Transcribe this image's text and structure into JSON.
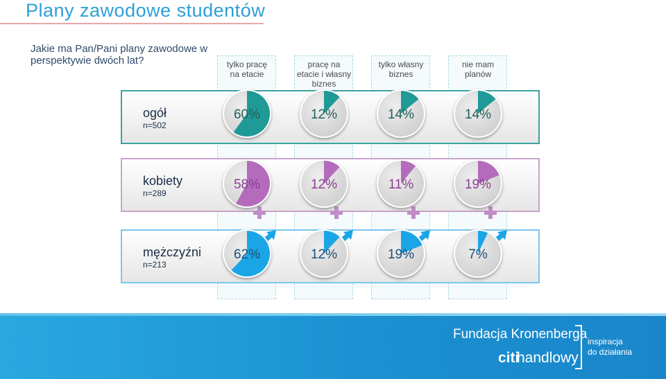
{
  "title": "Plany zawodowe studentów",
  "question": "Jakie ma Pan/Pani plany zawodowe w perspektywie dwóch lat?",
  "colors": {
    "ogol": "#1f9a96",
    "kobiety": "#b46bbc",
    "mezczyzni": "#1aa6e6",
    "pie_bg": "#cfcfcf"
  },
  "footer": {
    "brand_line1": "Fundacja Kronenberga",
    "brand_citi": "citi",
    "brand_line2": "handlowy",
    "tagline_1": "inspiracja",
    "tagline_2": "do działania"
  },
  "chart_data": {
    "type": "pie",
    "categories": [
      "tylko pracę na etacie",
      "pracę na etacie i własny biznes",
      "tylko własny biznes",
      "nie mam planów"
    ],
    "category_lines": [
      [
        "tylko pracę",
        "na etacie"
      ],
      [
        "pracę na",
        "etacie i własny",
        "biznes"
      ],
      [
        "tylko własny",
        "biznes"
      ],
      [
        "nie mam",
        "planów"
      ]
    ],
    "series": [
      {
        "label": "ogół",
        "n": "n=502",
        "values": [
          60,
          12,
          14,
          14
        ],
        "labels": [
          "60%",
          "12%",
          "14%",
          "14%"
        ],
        "marker": "none"
      },
      {
        "label": "kobiety",
        "n": "n=289",
        "values": [
          58,
          12,
          11,
          19
        ],
        "labels": [
          "58%",
          "12%",
          "11%",
          "19%"
        ],
        "marker": "female"
      },
      {
        "label": "mężczyźni",
        "n": "n=213",
        "values": [
          62,
          12,
          19,
          7
        ],
        "labels": [
          "62%",
          "12%",
          "19%",
          "7%"
        ],
        "marker": "male"
      }
    ]
  }
}
